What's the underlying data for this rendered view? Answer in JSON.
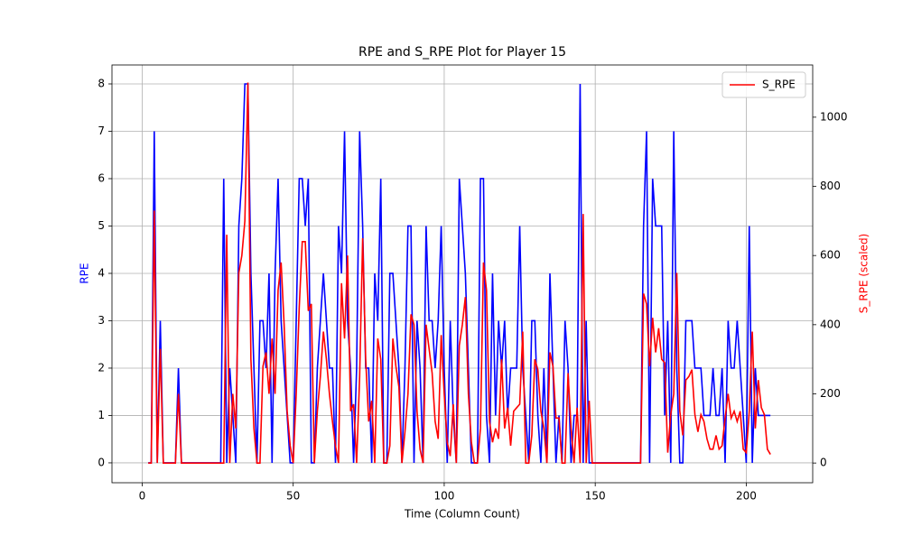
{
  "chart_data": {
    "type": "line",
    "title": "RPE and S_RPE Plot for Player 15",
    "xlabel": "Time (Column Count)",
    "ylabel": "RPE",
    "y2label": "S_RPE (scaled)",
    "x": [
      2,
      3,
      4,
      5,
      6,
      7,
      8,
      9,
      10,
      11,
      12,
      13,
      14,
      15,
      16,
      17,
      18,
      19,
      20,
      21,
      22,
      23,
      24,
      25,
      26,
      27,
      28,
      29,
      30,
      31,
      32,
      33,
      34,
      35,
      36,
      37,
      38,
      39,
      40,
      41,
      42,
      43,
      44,
      45,
      46,
      47,
      48,
      49,
      50,
      51,
      52,
      53,
      54,
      55,
      56,
      57,
      58,
      59,
      60,
      61,
      62,
      63,
      64,
      65,
      66,
      67,
      68,
      69,
      70,
      71,
      72,
      73,
      74,
      75,
      76,
      77,
      78,
      79,
      80,
      81,
      82,
      83,
      84,
      85,
      86,
      87,
      88,
      89,
      90,
      91,
      92,
      93,
      94,
      95,
      96,
      97,
      98,
      99,
      100,
      101,
      102,
      103,
      104,
      105,
      106,
      107,
      108,
      109,
      110,
      111,
      112,
      113,
      114,
      115,
      116,
      117,
      118,
      119,
      120,
      121,
      122,
      123,
      124,
      125,
      126,
      127,
      128,
      129,
      130,
      131,
      132,
      133,
      134,
      135,
      136,
      137,
      138,
      139,
      140,
      141,
      142,
      143,
      144,
      145,
      146,
      147,
      148,
      149,
      150,
      151,
      152,
      153,
      154,
      155,
      156,
      157,
      158,
      159,
      160,
      161,
      162,
      163,
      164,
      165,
      166,
      167,
      168,
      169,
      170,
      171,
      172,
      173,
      174,
      175,
      176,
      177,
      178,
      179,
      180,
      181,
      182,
      183,
      184,
      185,
      186,
      187,
      188,
      189,
      190,
      191,
      192,
      193,
      194,
      195,
      196,
      197,
      198,
      199,
      200,
      201,
      202,
      203,
      204,
      205,
      206,
      207,
      208
    ],
    "series": [
      {
        "color": "#0000ff",
        "values": [
          0,
          0,
          7,
          0,
          3,
          0,
          0,
          0,
          0,
          0,
          2,
          0,
          0,
          0,
          0,
          0,
          0,
          0,
          0,
          0,
          0,
          0,
          0,
          0,
          0,
          6,
          0,
          2,
          1,
          0,
          5,
          6,
          8,
          8,
          4,
          2,
          0,
          3,
          3,
          2,
          4,
          0,
          4,
          6,
          3,
          2,
          1,
          0,
          0,
          3,
          6,
          6,
          5,
          6,
          0,
          0,
          2,
          3,
          4,
          3,
          2,
          2,
          0,
          5,
          4,
          7,
          3,
          2,
          0,
          2,
          7,
          5,
          2,
          2,
          0,
          4,
          3,
          6,
          0,
          0,
          4,
          4,
          3,
          2,
          0,
          2,
          5,
          5,
          0,
          3,
          2,
          0,
          5,
          3,
          3,
          2,
          3,
          5,
          2,
          0,
          3,
          1,
          0,
          6,
          5,
          4,
          2,
          0,
          0,
          0,
          6,
          6,
          1,
          0,
          4,
          1,
          3,
          2,
          3,
          1,
          2,
          2,
          2,
          5,
          2,
          1,
          0,
          3,
          3,
          1,
          0,
          2,
          0,
          4,
          2,
          0,
          1,
          0,
          3,
          2,
          0,
          1,
          1,
          8,
          0,
          3,
          0,
          0,
          0,
          0,
          0,
          0,
          0,
          0,
          0,
          0,
          0,
          0,
          0,
          0,
          0,
          0,
          0,
          0,
          5,
          7,
          0,
          6,
          5,
          5,
          5,
          1,
          3,
          0,
          7,
          2,
          0,
          0,
          3,
          3,
          3,
          2,
          2,
          2,
          1,
          1,
          1,
          2,
          1,
          1,
          2,
          0,
          3,
          2,
          2,
          3,
          2,
          1,
          0,
          5,
          0,
          2,
          1,
          1,
          1,
          1,
          1
        ]
      },
      {
        "name": "S_RPE",
        "color": "#ff0000",
        "axis": "y2",
        "values": [
          0,
          0,
          730,
          0,
          330,
          0,
          0,
          0,
          0,
          0,
          200,
          0,
          0,
          0,
          0,
          0,
          0,
          0,
          0,
          0,
          0,
          0,
          0,
          0,
          0,
          0,
          660,
          0,
          200,
          100,
          550,
          600,
          700,
          1100,
          300,
          100,
          0,
          0,
          280,
          320,
          200,
          360,
          200,
          500,
          580,
          400,
          150,
          50,
          0,
          200,
          450,
          640,
          640,
          440,
          460,
          0,
          150,
          250,
          380,
          300,
          200,
          120,
          50,
          0,
          520,
          360,
          600,
          150,
          170,
          0,
          250,
          650,
          300,
          120,
          180,
          0,
          360,
          300,
          0,
          0,
          50,
          360,
          280,
          220,
          0,
          90,
          200,
          430,
          400,
          150,
          40,
          0,
          400,
          330,
          260,
          120,
          70,
          370,
          200,
          60,
          20,
          170,
          0,
          340,
          400,
          480,
          200,
          60,
          0,
          0,
          100,
          580,
          500,
          120,
          60,
          100,
          70,
          300,
          100,
          160,
          50,
          150,
          160,
          170,
          380,
          0,
          0,
          80,
          300,
          270,
          150,
          100,
          0,
          320,
          280,
          130,
          130,
          0,
          0,
          260,
          100,
          0,
          160,
          0,
          720,
          0,
          180,
          0,
          0,
          0,
          0,
          0,
          0,
          0,
          0,
          0,
          0,
          0,
          0,
          0,
          0,
          0,
          0,
          0,
          490,
          460,
          280,
          420,
          320,
          390,
          300,
          290,
          30,
          140,
          200,
          550,
          150,
          80,
          240,
          250,
          270,
          140,
          90,
          140,
          120,
          70,
          40,
          40,
          80,
          40,
          50,
          130,
          200,
          130,
          150,
          120,
          150,
          40,
          30,
          150,
          380,
          100,
          240,
          160,
          140,
          40,
          25
        ]
      }
    ],
    "xlim": [
      -10,
      222
    ],
    "xticks": [
      0,
      50,
      100,
      150,
      200
    ],
    "ylim": [
      -0.42,
      8.4
    ],
    "yticks": [
      0,
      1,
      2,
      3,
      4,
      5,
      6,
      7,
      8
    ],
    "y2lim": [
      -57,
      1151
    ],
    "y2ticks": [
      0,
      200,
      400,
      600,
      800,
      1000
    ],
    "grid": true,
    "legend": "upper right"
  }
}
